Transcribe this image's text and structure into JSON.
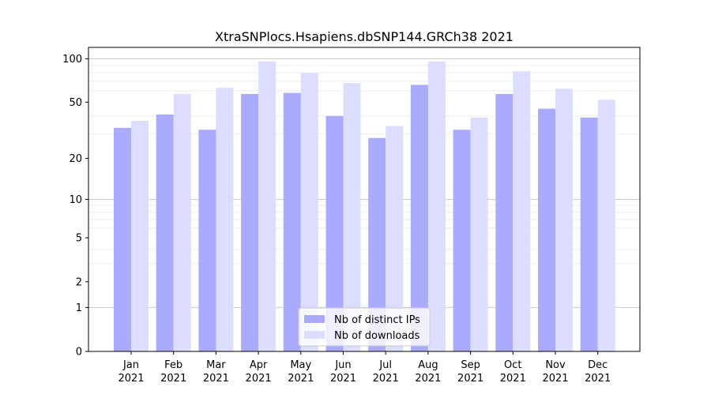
{
  "chart_data": {
    "type": "bar",
    "title": "XtraSNPlocs.Hsapiens.dbSNP144.GRCh38 2021",
    "xlabel": "",
    "ylabel": "",
    "y_scale": "log1p",
    "ylim": [
      0,
      120
    ],
    "grid": "horizontal",
    "legend_placement": "bottom-center",
    "categories": [
      [
        "Jan",
        "2021"
      ],
      [
        "Feb",
        "2021"
      ],
      [
        "Mar",
        "2021"
      ],
      [
        "Apr",
        "2021"
      ],
      [
        "May",
        "2021"
      ],
      [
        "Jun",
        "2021"
      ],
      [
        "Jul",
        "2021"
      ],
      [
        "Aug",
        "2021"
      ],
      [
        "Sep",
        "2021"
      ],
      [
        "Oct",
        "2021"
      ],
      [
        "Nov",
        "2021"
      ],
      [
        "Dec",
        "2021"
      ]
    ],
    "y_ticks": [
      0,
      1,
      2,
      5,
      10,
      20,
      50,
      100
    ],
    "y_tick_labels": [
      "0",
      "1",
      "2",
      "5",
      "10",
      "20",
      "50",
      "100"
    ],
    "series": [
      {
        "name": "Nb of distinct IPs",
        "color": "#aaaaff",
        "values": [
          33,
          41,
          32,
          57,
          58,
          40,
          28,
          66,
          32,
          57,
          45,
          39
        ]
      },
      {
        "name": "Nb of downloads",
        "color": "#ddddff",
        "values": [
          37,
          57,
          63,
          96,
          80,
          68,
          34,
          96,
          39,
          82,
          62,
          52
        ]
      }
    ]
  }
}
